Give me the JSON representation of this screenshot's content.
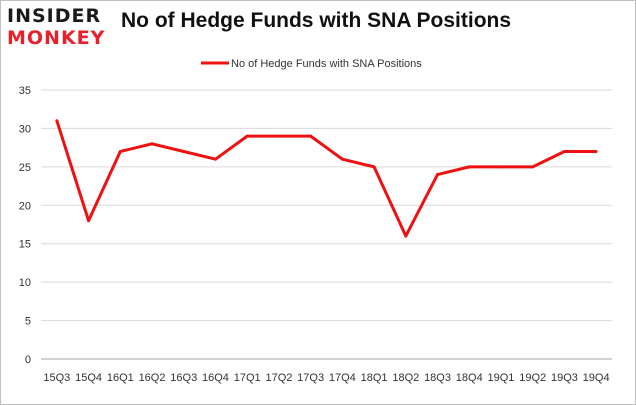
{
  "logo": {
    "line1": "INSIDER",
    "line2": "MONKEY"
  },
  "chart_data": {
    "type": "line",
    "title": "No of Hedge Funds with SNA Positions",
    "xlabel": "",
    "ylabel": "",
    "categories": [
      "15Q3",
      "15Q4",
      "16Q1",
      "16Q2",
      "16Q3",
      "16Q4",
      "17Q1",
      "17Q2",
      "17Q3",
      "17Q4",
      "18Q1",
      "18Q2",
      "18Q3",
      "18Q4",
      "19Q1",
      "19Q2",
      "19Q3",
      "19Q4"
    ],
    "series": [
      {
        "name": "No of Hedge Funds with SNA Positions",
        "values": [
          31,
          18,
          27,
          28,
          27,
          26,
          29,
          29,
          29,
          26,
          25,
          16,
          24,
          25,
          25,
          25,
          27,
          27
        ],
        "color": "#ee1111"
      }
    ],
    "ylim": [
      0,
      35
    ],
    "yticks": [
      0,
      5,
      10,
      15,
      20,
      25,
      30,
      35
    ],
    "grid": true,
    "legend": "top-center"
  }
}
